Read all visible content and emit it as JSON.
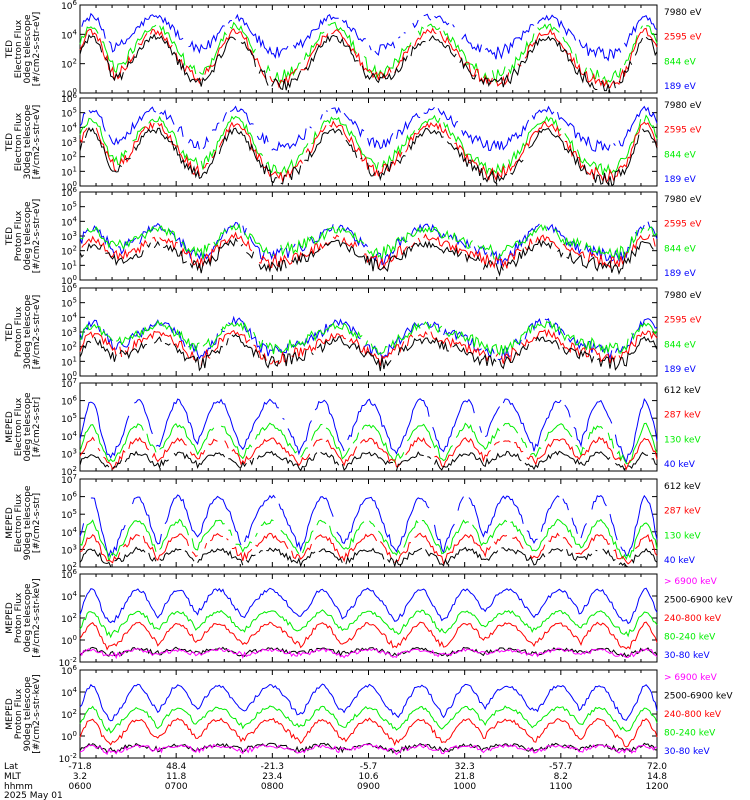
{
  "chart_data": [
    {
      "type": "line",
      "ylabel": [
        "TED",
        "Electron Flux",
        "0deg telescope",
        "[#/cm2-s-str-eV]"
      ],
      "yticks": [
        "10^6",
        "10^4",
        "10^2",
        "10^0"
      ],
      "ylim_exp": [
        0,
        6
      ],
      "profile": "ted",
      "series": [
        {
          "name": "7980 eV",
          "color": "#000000"
        },
        {
          "name": "2595 eV",
          "color": "#ff0000"
        },
        {
          "name": "844 eV",
          "color": "#00ee00"
        },
        {
          "name": "189 eV",
          "color": "#0000ff"
        }
      ]
    },
    {
      "type": "line",
      "ylabel": [
        "TED",
        "Electron Flux",
        "30deg telescope",
        "[#/cm2-s-str-eV]"
      ],
      "yticks": [
        "10^6",
        "10^5",
        "10^4",
        "10^3",
        "10^2",
        "10^1",
        "10^0"
      ],
      "ylim_exp": [
        0,
        6
      ],
      "profile": "ted",
      "series": [
        {
          "name": "7980 eV",
          "color": "#000000"
        },
        {
          "name": "2595 eV",
          "color": "#ff0000"
        },
        {
          "name": "844 eV",
          "color": "#00ee00"
        },
        {
          "name": "189 eV",
          "color": "#0000ff"
        }
      ]
    },
    {
      "type": "line",
      "ylabel": [
        "TED",
        "Proton Flux",
        "0deg telescope",
        "[#/cm2-s-str-eV]"
      ],
      "yticks": [
        "10^6",
        "10^5",
        "10^4",
        "10^3",
        "10^2",
        "10^1",
        "10^0"
      ],
      "ylim_exp": [
        0,
        6
      ],
      "profile": "tedp",
      "series": [
        {
          "name": "7980 eV",
          "color": "#000000"
        },
        {
          "name": "2595 eV",
          "color": "#ff0000"
        },
        {
          "name": "844 eV",
          "color": "#00ee00"
        },
        {
          "name": "189 eV",
          "color": "#0000ff"
        }
      ]
    },
    {
      "type": "line",
      "ylabel": [
        "TED",
        "Proton Flux",
        "30deg telescope",
        "[#/cm2-s-str-eV]"
      ],
      "yticks": [
        "10^6",
        "10^5",
        "10^4",
        "10^3",
        "10^2",
        "10^1",
        "10^0"
      ],
      "ylim_exp": [
        0,
        6
      ],
      "profile": "tedp",
      "series": [
        {
          "name": "7980 eV",
          "color": "#000000"
        },
        {
          "name": "2595 eV",
          "color": "#ff0000"
        },
        {
          "name": "844 eV",
          "color": "#00ee00"
        },
        {
          "name": "189 eV",
          "color": "#0000ff"
        }
      ]
    },
    {
      "type": "line",
      "ylabel": [
        "MEPED",
        "Electron Flux",
        "0deg telescope",
        "[#/cm2-s-str]"
      ],
      "yticks": [
        "10^7",
        "10^6",
        "10^5",
        "10^4",
        "10^3",
        "10^2"
      ],
      "ylim_exp": [
        2,
        7
      ],
      "profile": "mepe",
      "series": [
        {
          "name": "612 keV",
          "color": "#000000"
        },
        {
          "name": "287 keV",
          "color": "#ff0000"
        },
        {
          "name": "130 keV",
          "color": "#00ee00"
        },
        {
          "name": "40 keV",
          "color": "#0000ff"
        }
      ]
    },
    {
      "type": "line",
      "ylabel": [
        "MEPED",
        "Electron Flux",
        "90deg telescope",
        "[#/cm2-s-str]"
      ],
      "yticks": [
        "10^7",
        "10^6",
        "10^5",
        "10^4",
        "10^3",
        "10^2"
      ],
      "ylim_exp": [
        2,
        7
      ],
      "profile": "mepe",
      "series": [
        {
          "name": "612 keV",
          "color": "#000000"
        },
        {
          "name": "287 keV",
          "color": "#ff0000"
        },
        {
          "name": "130 keV",
          "color": "#00ee00"
        },
        {
          "name": "40 keV",
          "color": "#0000ff"
        }
      ]
    },
    {
      "type": "line",
      "ylabel": [
        "MEPED",
        "Proton Flux",
        "0deg telescope",
        "[#/cm2-s-str-keV]"
      ],
      "yticks": [
        "10^6",
        "10^4",
        "10^2",
        "10^0",
        "10^-2"
      ],
      "ylim_exp": [
        -2,
        6
      ],
      "profile": "mepp",
      "series": [
        {
          "name": "> 6900 keV",
          "color": "#ff00ff"
        },
        {
          "name": "2500-6900 keV",
          "color": "#000000"
        },
        {
          "name": "240-800 keV",
          "color": "#ff0000"
        },
        {
          "name": "80-240 keV",
          "color": "#00ee00"
        },
        {
          "name": "30-80 keV",
          "color": "#0000ff"
        }
      ]
    },
    {
      "type": "line",
      "ylabel": [
        "MEPED",
        "Proton Flux",
        "90deg telescope",
        "[#/cm2-s-str-keV]"
      ],
      "yticks": [
        "10^6",
        "10^4",
        "10^2",
        "10^0",
        "10^-2"
      ],
      "ylim_exp": [
        -2,
        6
      ],
      "profile": "mepp",
      "series": [
        {
          "name": "> 6900 keV",
          "color": "#ff00ff"
        },
        {
          "name": "2500-6900 keV",
          "color": "#000000"
        },
        {
          "name": "240-800 keV",
          "color": "#ff0000"
        },
        {
          "name": "80-240 keV",
          "color": "#00ee00"
        },
        {
          "name": "30-80 keV",
          "color": "#0000ff"
        }
      ]
    }
  ],
  "xaxis": {
    "row_labels": [
      "Lat",
      "MLT",
      "hhmm",
      "2025 May 01"
    ],
    "ticks": [
      {
        "lat": "-71.8",
        "mlt": "3.2",
        "hhmm": "0600"
      },
      {
        "lat": "48.4",
        "mlt": "11.8",
        "hhmm": "0700"
      },
      {
        "lat": "-21.3",
        "mlt": "23.4",
        "hhmm": "0800"
      },
      {
        "lat": "-5.7",
        "mlt": "10.6",
        "hhmm": "0900"
      },
      {
        "lat": "32.3",
        "mlt": "21.8",
        "hhmm": "1000"
      },
      {
        "lat": "-57.7",
        "mlt": "8.2",
        "hhmm": "1100"
      },
      {
        "lat": "72.0",
        "mlt": "14.8",
        "hhmm": "1200"
      }
    ]
  }
}
